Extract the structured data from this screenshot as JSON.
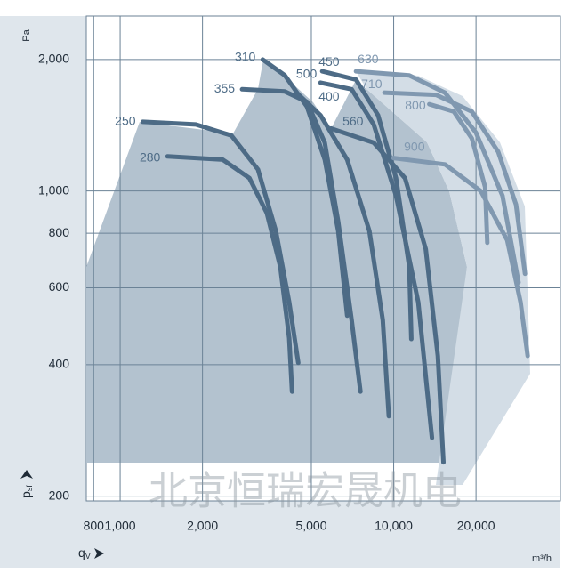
{
  "chart_data": {
    "type": "line",
    "y_unit": "Pa",
    "y_label": "p",
    "y_label_sub": "sf",
    "x_label": "q",
    "x_label_sub": "V",
    "x_unit": "m³/h",
    "watermark": "北京恒瑞宏晟机电",
    "log_x": true,
    "log_y": true,
    "grid": true,
    "xlim": [
      752,
      40700
    ],
    "ylim": [
      195,
      2516
    ],
    "xticks": [
      800,
      {
        "value": 1000,
        "label": "1,000"
      },
      {
        "value": 2000,
        "label": "2,000"
      },
      {
        "value": 5000,
        "label": "5,000"
      },
      {
        "value": 10000,
        "label": "10,000"
      },
      {
        "value": 20000,
        "label": "20,000"
      }
    ],
    "yticks": [
      200,
      400,
      600,
      800,
      {
        "value": 1000,
        "label": "1,000"
      },
      {
        "value": 2000,
        "label": "2,000"
      }
    ],
    "series": [
      {
        "name": "250",
        "color": "#4d6b86",
        "x": [
          1210,
          1890,
          2550,
          3190,
          3710,
          4150,
          4480
        ],
        "values": [
          1440,
          1420,
          1340,
          1120,
          810,
          556,
          404
        ]
      },
      {
        "name": "280",
        "color": "#4d6b86",
        "x": [
          1490,
          2370,
          2970,
          3440,
          3850,
          4150,
          4250
        ],
        "values": [
          1200,
          1180,
          1070,
          890,
          670,
          460,
          347
        ]
      },
      {
        "name": "310",
        "color": "#4d6b86",
        "x": [
          3320,
          4000,
          4820,
          5600,
          6270,
          6760
        ],
        "values": [
          2000,
          1840,
          1560,
          1180,
          810,
          518
        ]
      },
      {
        "name": "355",
        "color": "#4d6b86",
        "x": [
          2790,
          4000,
          4820,
          5600,
          6270,
          7020,
          7560
        ],
        "values": [
          1710,
          1690,
          1600,
          1290,
          850,
          506,
          347
        ]
      },
      {
        "name": "400",
        "color": "#4d6b86",
        "x": [
          4410,
          5400,
          6760,
          8150,
          9120,
          9600
        ],
        "values": [
          1680,
          1490,
          1180,
          810,
          506,
          305
        ]
      },
      {
        "name": "450",
        "color": "#4d6b86",
        "x": [
          5480,
          7280,
          8770,
          10200,
          11400,
          11600
        ],
        "values": [
          1880,
          1800,
          1490,
          1070,
          670,
          458
        ]
      },
      {
        "name": "500",
        "color": "#4d6b86",
        "x": [
          5400,
          7020,
          8450,
          10200,
          12300,
          13800
        ],
        "values": [
          1770,
          1710,
          1420,
          975,
          556,
          272
        ]
      },
      {
        "name": "560",
        "color": "#4d6b86",
        "x": [
          5900,
          8450,
          11000,
          13100,
          14500,
          15200
        ],
        "values": [
          1390,
          1290,
          1070,
          736,
          419,
          239
        ]
      },
      {
        "name": "630",
        "color": "#8098b0",
        "x": [
          7280,
          11400,
          15400,
          20000,
          25000,
          28600
        ],
        "values": [
          1880,
          1840,
          1680,
          1360,
          975,
          617
        ]
      },
      {
        "name": "710",
        "color": "#8098b0",
        "x": [
          9250,
          14300,
          19300,
          24100,
          28000,
          30200
        ],
        "values": [
          1680,
          1660,
          1520,
          1230,
          931,
          646
        ]
      },
      {
        "name": "800",
        "color": "#8098b0",
        "x": [
          13500,
          16600,
          19300,
          21600,
          22000
        ],
        "values": [
          1580,
          1520,
          1320,
          1020,
          761
        ]
      },
      {
        "name": "900",
        "color": "#8098b0",
        "x": [
          9970,
          15400,
          20800,
          26000,
          29100,
          30900
        ],
        "values": [
          1190,
          1150,
          1000,
          771,
          556,
          419
        ]
      }
    ]
  }
}
